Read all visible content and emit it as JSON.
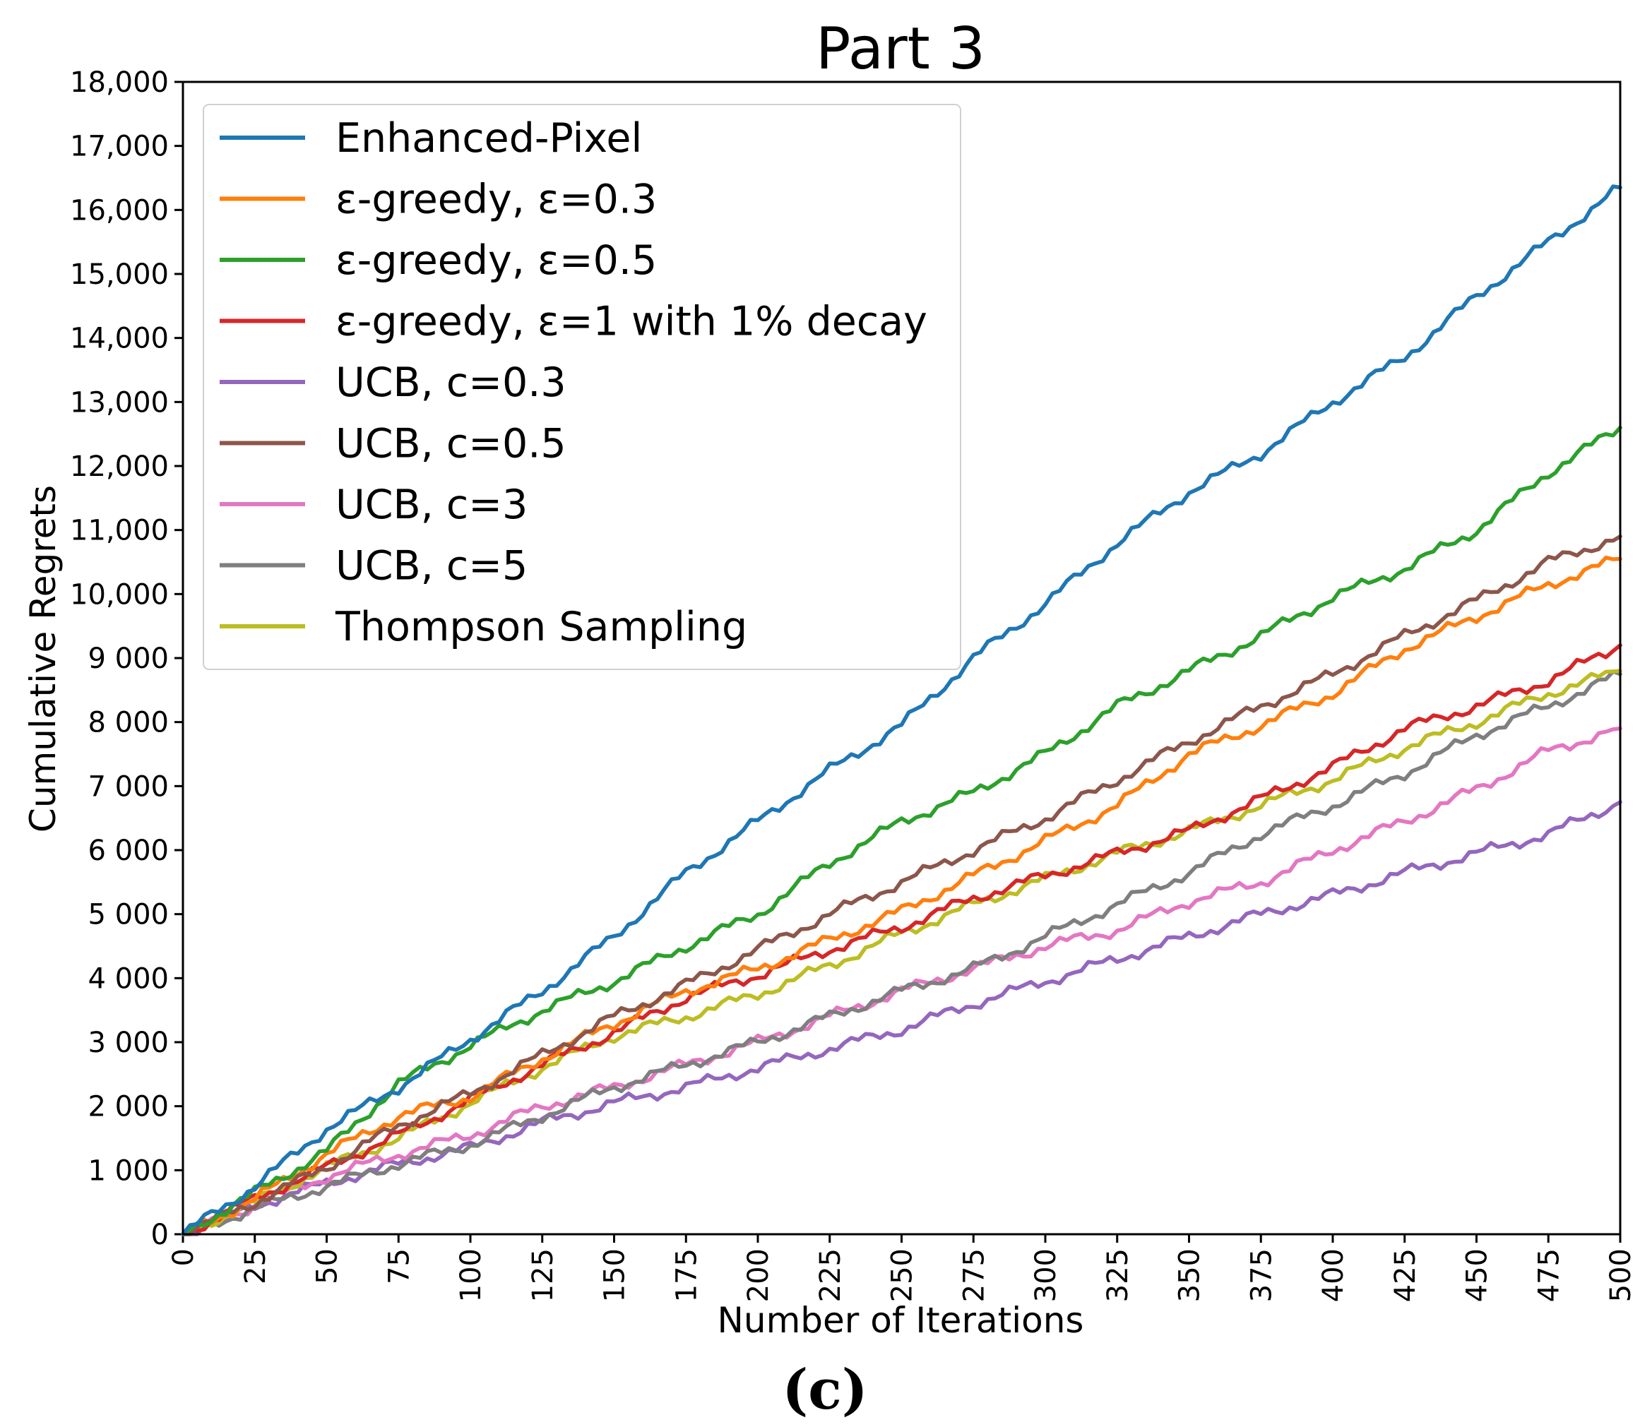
{
  "caption": "(c)",
  "chart_data": {
    "type": "line",
    "title": "Part 3",
    "xlabel": "Number of Iterations",
    "ylabel": "Cumulative Regrets",
    "xlim": [
      0,
      500
    ],
    "ylim": [
      0,
      18000
    ],
    "x_ticks": [
      0,
      25,
      50,
      75,
      100,
      125,
      150,
      175,
      200,
      225,
      250,
      275,
      300,
      325,
      350,
      375,
      400,
      425,
      450,
      475,
      500
    ],
    "x_tick_labels": [
      "0",
      "25",
      "50",
      "75",
      "100",
      "125",
      "150",
      "175",
      "200",
      "225",
      "250",
      "275",
      "300",
      "325",
      "350",
      "375",
      "400",
      "425",
      "450",
      "475",
      "500"
    ],
    "y_ticks": [
      0,
      1000,
      2000,
      3000,
      4000,
      5000,
      6000,
      7000,
      8000,
      9000,
      10000,
      11000,
      12000,
      13000,
      14000,
      15000,
      16000,
      17000,
      18000
    ],
    "y_tick_labels": [
      "0",
      "1 000",
      "2 000",
      "3 000",
      "4 000",
      "5 000",
      "6 000",
      "7 000",
      "8 000",
      "9 000",
      "10,000",
      "11,000",
      "12,000",
      "13,000",
      "14,000",
      "15,000",
      "16,000",
      "17,000",
      "18,000"
    ],
    "grid": false,
    "legend_position": "top-left",
    "series": [
      {
        "name": "Enhanced-Pixel",
        "color": "#1f77b4",
        "x": [
          0,
          25,
          50,
          75,
          100,
          125,
          150,
          175,
          200,
          225,
          250,
          275,
          300,
          325,
          350,
          375,
          400,
          425,
          450,
          475,
          500
        ],
        "values": [
          0,
          750,
          1650,
          2300,
          3050,
          3800,
          4650,
          5650,
          6450,
          7250,
          7950,
          9000,
          9850,
          10800,
          11600,
          12200,
          13000,
          13700,
          14650,
          15500,
          16350
        ]
      },
      {
        "name": "ε-greedy, ε=0.3",
        "color": "#ff7f0e",
        "x": [
          0,
          25,
          50,
          75,
          100,
          125,
          150,
          175,
          200,
          225,
          250,
          275,
          300,
          325,
          350,
          375,
          400,
          425,
          450,
          475,
          500
        ],
        "values": [
          0,
          550,
          1250,
          1850,
          2150,
          2750,
          3300,
          3800,
          4150,
          4600,
          5050,
          5600,
          6150,
          6700,
          7500,
          7950,
          8450,
          9150,
          9650,
          10150,
          10550
        ]
      },
      {
        "name": "ε-greedy, ε=0.5",
        "color": "#2ca02c",
        "x": [
          0,
          25,
          50,
          75,
          100,
          125,
          150,
          175,
          200,
          225,
          250,
          275,
          300,
          325,
          350,
          375,
          400,
          425,
          450,
          475,
          500
        ],
        "values": [
          0,
          650,
          1300,
          2350,
          2950,
          3500,
          3950,
          4500,
          5000,
          5800,
          6450,
          6900,
          7500,
          8250,
          8800,
          9350,
          9950,
          10400,
          11000,
          11900,
          12600
        ]
      },
      {
        "name": "ε-greedy, ε=1 with 1% decay",
        "color": "#d62728",
        "x": [
          0,
          25,
          50,
          75,
          100,
          125,
          150,
          175,
          200,
          225,
          250,
          275,
          300,
          325,
          350,
          375,
          400,
          425,
          450,
          475,
          500
        ],
        "values": [
          0,
          550,
          1050,
          1550,
          2100,
          2650,
          3150,
          3700,
          4050,
          4450,
          4800,
          5250,
          5600,
          5950,
          6300,
          6800,
          7300,
          7900,
          8250,
          8650,
          9200
        ]
      },
      {
        "name": "UCB, c=0.3",
        "color": "#9467bd",
        "x": [
          0,
          25,
          50,
          75,
          100,
          125,
          150,
          175,
          200,
          225,
          250,
          275,
          300,
          325,
          350,
          375,
          400,
          425,
          450,
          475,
          500
        ],
        "values": [
          0,
          450,
          800,
          1100,
          1350,
          1750,
          2050,
          2300,
          2600,
          2900,
          3200,
          3600,
          3950,
          4300,
          4650,
          5000,
          5300,
          5650,
          5950,
          6250,
          6750
        ]
      },
      {
        "name": "UCB, c=0.5",
        "color": "#8c564b",
        "x": [
          0,
          25,
          50,
          75,
          100,
          125,
          150,
          175,
          200,
          225,
          250,
          275,
          300,
          325,
          350,
          375,
          400,
          425,
          450,
          475,
          500
        ],
        "values": [
          0,
          500,
          1050,
          1700,
          2200,
          2800,
          3400,
          3900,
          4450,
          5000,
          5500,
          6000,
          6500,
          7100,
          7700,
          8250,
          8750,
          9350,
          9900,
          10500,
          10900
        ]
      },
      {
        "name": "UCB, c=3",
        "color": "#e377c2",
        "x": [
          0,
          25,
          50,
          75,
          100,
          125,
          150,
          175,
          200,
          225,
          250,
          275,
          300,
          325,
          350,
          375,
          400,
          425,
          450,
          475,
          500
        ],
        "values": [
          0,
          450,
          900,
          1250,
          1550,
          2000,
          2300,
          2650,
          3000,
          3400,
          3800,
          4150,
          4500,
          4750,
          5200,
          5500,
          6000,
          6450,
          6950,
          7550,
          7900
        ]
      },
      {
        "name": "UCB, c=5",
        "color": "#7f7f7f",
        "x": [
          0,
          25,
          50,
          75,
          100,
          125,
          150,
          175,
          200,
          225,
          250,
          275,
          300,
          325,
          350,
          375,
          400,
          425,
          450,
          475,
          500
        ],
        "values": [
          0,
          400,
          750,
          1100,
          1400,
          1850,
          2300,
          2650,
          3000,
          3400,
          3800,
          4150,
          4650,
          5150,
          5650,
          6250,
          6700,
          7200,
          7800,
          8250,
          8750
        ]
      },
      {
        "name": "Thompson Sampling",
        "color": "#bcbd22",
        "x": [
          0,
          25,
          50,
          75,
          100,
          125,
          150,
          175,
          200,
          225,
          250,
          275,
          300,
          325,
          350,
          375,
          400,
          425,
          450,
          475,
          500
        ],
        "values": [
          0,
          500,
          1050,
          1500,
          2050,
          2600,
          3100,
          3400,
          3750,
          4200,
          4700,
          5150,
          5550,
          5950,
          6300,
          6700,
          7100,
          7600,
          8000,
          8450,
          8800
        ]
      }
    ]
  }
}
